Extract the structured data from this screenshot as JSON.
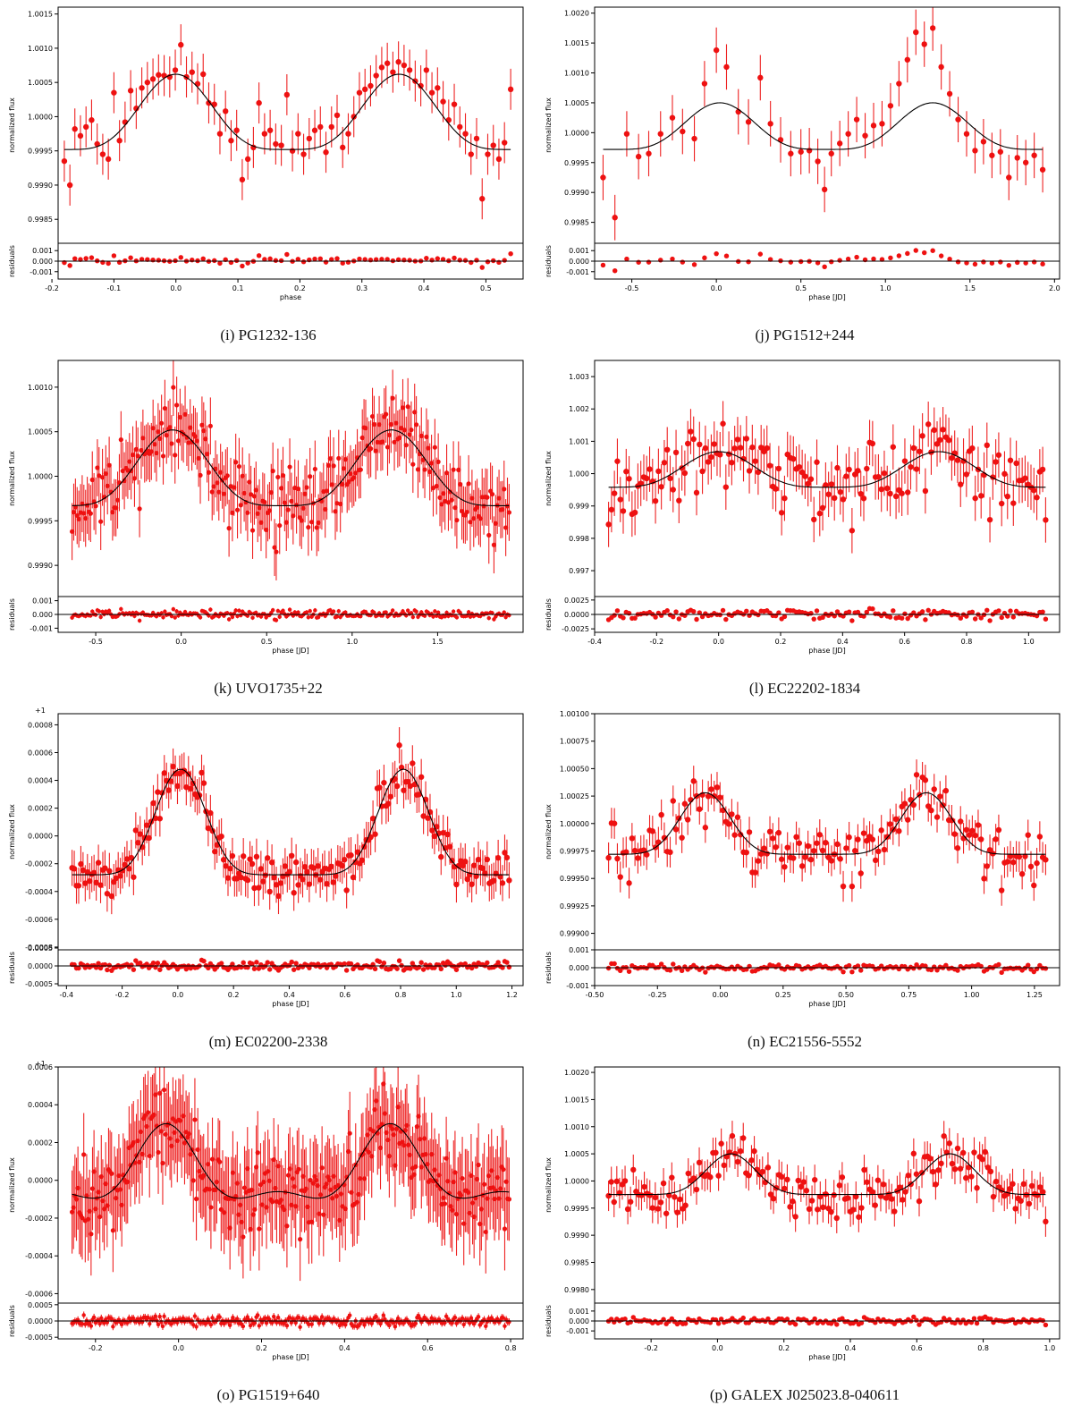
{
  "ylabel_flux": "normalized flux",
  "ylabel_resid": "residuals",
  "chart_data": [
    {
      "id": "i",
      "caption": "(i) PG1232-136",
      "type": "scatter",
      "xlabel": "phase",
      "offset_label": "",
      "xlim": [
        -0.19,
        0.56
      ],
      "xticks": [
        "-0.2",
        "-0.1",
        "0.0",
        "0.1",
        "0.2",
        "0.3",
        "0.4",
        "0.5"
      ],
      "xtick_vals": [
        -0.2,
        -0.1,
        0.0,
        0.1,
        0.2,
        0.3,
        0.4,
        0.5
      ],
      "ylim": [
        0.99815,
        1.0016
      ],
      "yticks": [
        "0.9985",
        "0.9990",
        "0.9995",
        "1.0000",
        "1.0005",
        "1.0010",
        "1.0015"
      ],
      "ytick_vals": [
        0.9985,
        0.999,
        0.9995,
        1.0,
        1.0005,
        1.001,
        1.0015
      ],
      "rlim": [
        -0.0017,
        0.0017
      ],
      "rticks": [
        "-0.001",
        "0.000",
        "0.001"
      ],
      "rtick_vals": [
        -0.001,
        0,
        0.001
      ],
      "model": {
        "base": 0.99952,
        "amp": 0.0011,
        "period": 0.36,
        "phi0": 0.0,
        "shape": 2
      },
      "x": [
        -0.18,
        -0.171,
        -0.163,
        -0.154,
        -0.145,
        -0.136,
        -0.127,
        -0.118,
        -0.109,
        -0.1,
        -0.091,
        -0.082,
        -0.073,
        -0.064,
        -0.055,
        -0.046,
        -0.037,
        -0.028,
        -0.019,
        -0.01,
        -0.001,
        0.008,
        0.017,
        0.026,
        0.035,
        0.044,
        0.053,
        0.062,
        0.071,
        0.08,
        0.089,
        0.098,
        0.107,
        0.116,
        0.125,
        0.134,
        0.143,
        0.152,
        0.161,
        0.17,
        0.179,
        0.188,
        0.197,
        0.206,
        0.215,
        0.224,
        0.233,
        0.242,
        0.251,
        0.26,
        0.269,
        0.278,
        0.287,
        0.296,
        0.305,
        0.314,
        0.323,
        0.332,
        0.341,
        0.35,
        0.359,
        0.368,
        0.377,
        0.386,
        0.395,
        0.404,
        0.413,
        0.422,
        0.431,
        0.44,
        0.449,
        0.458,
        0.467,
        0.476,
        0.485,
        0.494,
        0.503,
        0.512,
        0.521,
        0.53,
        0.54
      ],
      "y": [
        0.99935,
        0.999,
        0.99982,
        0.99972,
        0.99985,
        0.99995,
        0.9996,
        0.99945,
        0.99938,
        1.00035,
        0.99965,
        0.99992,
        1.00038,
        1.00012,
        1.00042,
        1.0005,
        1.00055,
        1.00061,
        1.0006,
        1.00058,
        1.00068,
        1.00105,
        1.00058,
        1.00065,
        1.00048,
        1.00062,
        1.0002,
        1.00018,
        0.99975,
        1.00008,
        0.99965,
        0.9998,
        0.99908,
        0.99938,
        0.99955,
        1.0002,
        0.99975,
        0.9998,
        0.9996,
        0.99958,
        1.00032,
        0.9995,
        0.99975,
        0.99945,
        0.99968,
        0.9998,
        0.99985,
        0.99948,
        0.99985,
        1.00002,
        0.99955,
        0.99975,
        1.0,
        1.00035,
        1.0004,
        1.00045,
        1.0006,
        1.00072,
        1.00078,
        1.00065,
        1.0008,
        1.00075,
        1.00068,
        1.00052,
        1.00045,
        1.00068,
        1.00035,
        1.00042,
        1.00022,
        0.99995,
        1.00018,
        0.99985,
        0.99975,
        0.99945,
        0.99968,
        0.9988,
        0.99945,
        0.99958,
        0.99938,
        0.99962,
        1.0004
      ],
      "err": 0.0003
    },
    {
      "id": "j",
      "caption": "(j) PG1512+244",
      "type": "scatter",
      "xlabel": "phase [JD]",
      "offset_label": "",
      "xlim": [
        -0.72,
        2.03
      ],
      "xticks": [
        "-0.5",
        "0.0",
        "0.5",
        "1.0",
        "1.5",
        "2.0"
      ],
      "xtick_vals": [
        -0.5,
        0.0,
        0.5,
        1.0,
        1.5,
        2.0
      ],
      "ylim": [
        0.99815,
        1.0021
      ],
      "yticks": [
        "0.9985",
        "0.9990",
        "0.9995",
        "1.0000",
        "1.0005",
        "1.0010",
        "1.0015",
        "1.0020"
      ],
      "ytick_vals": [
        0.9985,
        0.999,
        0.9995,
        1.0,
        1.0005,
        1.001,
        1.0015,
        1.002
      ],
      "rlim": [
        -0.0017,
        0.0017
      ],
      "rticks": [
        "-0.001",
        "0.000",
        "0.001"
      ],
      "rtick_vals": [
        -0.001,
        0,
        0.001
      ],
      "model": {
        "base": 0.99972,
        "amp": 0.00078,
        "period": 1.26,
        "phi0": 0.02,
        "shape": 2
      },
      "x": [
        -0.67,
        -0.6,
        -0.53,
        -0.46,
        -0.4,
        -0.33,
        -0.26,
        -0.2,
        -0.13,
        -0.07,
        0.0,
        0.06,
        0.13,
        0.19,
        0.26,
        0.32,
        0.38,
        0.44,
        0.5,
        0.55,
        0.6,
        0.64,
        0.68,
        0.73,
        0.78,
        0.83,
        0.88,
        0.93,
        0.98,
        1.03,
        1.08,
        1.13,
        1.18,
        1.23,
        1.28,
        1.33,
        1.38,
        1.43,
        1.48,
        1.53,
        1.58,
        1.63,
        1.68,
        1.73,
        1.78,
        1.83,
        1.88,
        1.93
      ],
      "y": [
        0.99925,
        0.99858,
        0.99998,
        0.9996,
        0.99965,
        0.99998,
        1.00025,
        1.00002,
        0.9999,
        1.00082,
        1.00138,
        1.0011,
        1.00035,
        1.00018,
        1.00092,
        1.00015,
        0.99988,
        0.99965,
        0.99968,
        0.9997,
        0.99952,
        0.99905,
        0.99965,
        0.99982,
        0.99998,
        1.00022,
        0.99995,
        1.00012,
        1.00015,
        1.00045,
        1.00082,
        1.00122,
        1.00168,
        1.00148,
        1.00175,
        1.0011,
        1.00065,
        1.00022,
        0.99998,
        0.9997,
        0.99985,
        0.99962,
        0.99968,
        0.99925,
        0.99958,
        0.9995,
        0.99962,
        0.99938
      ],
      "err": 0.00038
    },
    {
      "id": "k",
      "caption": "(k) UVO1735+22",
      "type": "scatter",
      "xlabel": "phase [JD]",
      "offset_label": "",
      "xlim": [
        -0.72,
        2.0
      ],
      "xticks": [
        "-0.5",
        "0.0",
        "0.5",
        "1.0",
        "1.5"
      ],
      "xtick_vals": [
        -0.5,
        0.0,
        0.5,
        1.0,
        1.5
      ],
      "ylim": [
        0.99865,
        1.0013
      ],
      "yticks": [
        "0.9990",
        "0.9995",
        "1.0000",
        "1.0005",
        "1.0010"
      ],
      "ytick_vals": [
        0.999,
        0.9995,
        1.0,
        1.0005,
        1.001
      ],
      "rlim": [
        -0.0013,
        0.0013
      ],
      "rticks": [
        "-0.001",
        "0.000",
        "0.001"
      ],
      "rtick_vals": [
        -0.001,
        0,
        0.001
      ],
      "model": {
        "base": 0.99967,
        "amp": 0.00085,
        "period": 1.28,
        "phi0": -0.05,
        "shape": 2
      },
      "n": 260,
      "noise": 0.00028,
      "err": 0.00032,
      "seed": 11,
      "x": [],
      "y": []
    },
    {
      "id": "l",
      "caption": "(l) EC22202-1834",
      "type": "scatter",
      "xlabel": "phase [JD]",
      "offset_label": "",
      "xlim": [
        -0.4,
        1.1
      ],
      "xticks": [
        "-0.4",
        "-0.2",
        "0.0",
        "0.2",
        "0.4",
        "0.6",
        "0.8",
        "1.0"
      ],
      "xtick_vals": [
        -0.4,
        -0.2,
        0.0,
        0.2,
        0.4,
        0.6,
        0.8,
        1.0
      ],
      "ylim": [
        0.9962,
        1.0035
      ],
      "yticks": [
        "0.997",
        "0.998",
        "0.999",
        "1.000",
        "1.001",
        "1.002",
        "1.003"
      ],
      "ytick_vals": [
        0.997,
        0.998,
        0.999,
        1.0,
        1.001,
        1.002,
        1.003
      ],
      "rlim": [
        -0.0031,
        0.0031
      ],
      "rticks": [
        "-0.0025",
        "0.0000",
        "0.0025"
      ],
      "rtick_vals": [
        -0.0025,
        0,
        0.0025
      ],
      "model": {
        "base": 0.99958,
        "amp": 0.0011,
        "period": 0.71,
        "phi0": 0.0,
        "shape": 2
      },
      "n": 150,
      "noise": 0.00075,
      "err": 0.0007,
      "seed": 23,
      "x": [],
      "y": []
    },
    {
      "id": "m",
      "caption": "(m) EC02200-2338",
      "type": "scatter",
      "xlabel": "phase [JD]",
      "offset_label": "+1",
      "xlim": [
        -0.43,
        1.24
      ],
      "xticks": [
        "-0.4",
        "-0.2",
        "0.0",
        "0.2",
        "0.4",
        "0.6",
        "0.8",
        "1.0",
        "1.2"
      ],
      "xtick_vals": [
        -0.4,
        -0.2,
        0.0,
        0.2,
        0.4,
        0.6,
        0.8,
        1.0,
        1.2
      ],
      "ylim": [
        -0.00082,
        0.00088
      ],
      "yticks": [
        "-0.0008",
        "-0.0006",
        "-0.0004",
        "-0.0002",
        "0.0000",
        "0.0002",
        "0.0004",
        "0.0006",
        "0.0008"
      ],
      "ytick_vals": [
        -0.0008,
        -0.0006,
        -0.0004,
        -0.0002,
        0,
        0.0002,
        0.0004,
        0.0006,
        0.0008
      ],
      "rlim": [
        -0.00055,
        0.00045
      ],
      "rticks": [
        "-0.0005",
        "0.0000",
        "0.0005"
      ],
      "rtick_vals": [
        -0.0005,
        0,
        0.0005
      ],
      "model": {
        "base": -0.00028,
        "amp": 0.00076,
        "period": 0.8,
        "phi0": 0.01,
        "shape": 4
      },
      "n": 200,
      "noise": 0.00011,
      "err": 0.00013,
      "seed": 37,
      "x": [],
      "y": []
    },
    {
      "id": "n",
      "caption": "(n) EC21556-5552",
      "type": "scatter",
      "xlabel": "phase [JD]",
      "offset_label": "",
      "xlim": [
        -0.5,
        1.35
      ],
      "xticks": [
        "-0.50",
        "-0.25",
        "0.00",
        "0.25",
        "0.50",
        "0.75",
        "1.00",
        "1.25"
      ],
      "xtick_vals": [
        -0.5,
        -0.25,
        0.0,
        0.25,
        0.5,
        0.75,
        1.0,
        1.25
      ],
      "ylim": [
        0.99885,
        1.001
      ],
      "yticks": [
        "0.99900",
        "0.99925",
        "0.99950",
        "0.99975",
        "1.00000",
        "1.00025",
        "1.00050",
        "1.00075",
        "1.00100"
      ],
      "ytick_vals": [
        0.999,
        0.99925,
        0.9995,
        0.99975,
        1.0,
        1.00025,
        1.0005,
        1.00075,
        1.001
      ],
      "rlim": [
        -0.001,
        0.001
      ],
      "rticks": [
        "-0.001",
        "0.000",
        "0.001"
      ],
      "rtick_vals": [
        -0.001,
        0,
        0.001
      ],
      "model": {
        "base": 0.99972,
        "amp": 0.00056,
        "period": 0.88,
        "phi0": -0.06,
        "shape": 4
      },
      "n": 150,
      "noise": 0.00018,
      "err": 0.00014,
      "seed": 41,
      "x": [],
      "y": []
    },
    {
      "id": "o",
      "caption": "(o) PG1519+640",
      "type": "scatter",
      "xlabel": "phase [JD]",
      "offset_label": "+1",
      "xlim": [
        -0.29,
        0.83
      ],
      "xticks": [
        "-0.2",
        "0.0",
        "0.2",
        "0.4",
        "0.6",
        "0.8"
      ],
      "xtick_vals": [
        -0.2,
        0.0,
        0.2,
        0.4,
        0.6,
        0.8
      ],
      "ylim": [
        -0.00065,
        0.0006
      ],
      "yticks": [
        "-0.0006",
        "-0.0004",
        "-0.0002",
        "0.0000",
        "0.0002",
        "0.0004",
        "0.0006"
      ],
      "ytick_vals": [
        -0.0006,
        -0.0004,
        -0.0002,
        0,
        0.0002,
        0.0004,
        0.0006
      ],
      "rlim": [
        -0.00055,
        0.00055
      ],
      "rticks": [
        "-0.0005",
        "0.0000",
        "0.0005"
      ],
      "rtick_vals": [
        -0.0005,
        0,
        0.0005
      ],
      "model": {
        "base": -0.00012,
        "amp": 0.00042,
        "period": 0.54,
        "phi0": -0.03,
        "shape": 3,
        "second": 6e-05
      },
      "n": 300,
      "noise": 0.00014,
      "err": 0.00022,
      "seed": 53,
      "x": [],
      "y": []
    },
    {
      "id": "p",
      "caption": "(p) GALEX J025023.8-040611",
      "type": "scatter",
      "xlabel": "phase [JD]",
      "offset_label": "",
      "xlim": [
        -0.37,
        1.03
      ],
      "xticks": [
        "-0.2",
        "0.0",
        "0.2",
        "0.4",
        "0.6",
        "0.8",
        "1.0"
      ],
      "xtick_vals": [
        -0.2,
        0.0,
        0.2,
        0.4,
        0.6,
        0.8,
        1.0
      ],
      "ylim": [
        0.99775,
        1.0021
      ],
      "yticks": [
        "0.9980",
        "0.9985",
        "0.9990",
        "0.9995",
        "1.0000",
        "1.0005",
        "1.0010",
        "1.0015",
        "1.0020"
      ],
      "ytick_vals": [
        0.998,
        0.9985,
        0.999,
        0.9995,
        1.0,
        1.0005,
        1.001,
        1.0015,
        1.002
      ],
      "rlim": [
        -0.0018,
        0.0018
      ],
      "rticks": [
        "-0.001",
        "0.000",
        "0.001"
      ],
      "rtick_vals": [
        -0.001,
        0,
        0.001
      ],
      "model": {
        "base": 0.99975,
        "amp": 0.00075,
        "period": 0.66,
        "phi0": 0.04,
        "shape": 4
      },
      "n": 160,
      "noise": 0.00028,
      "err": 0.00028,
      "seed": 67,
      "x": [],
      "y": []
    }
  ]
}
